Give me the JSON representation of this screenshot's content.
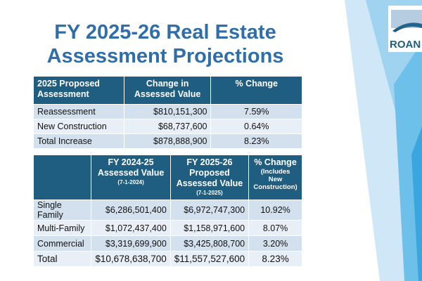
{
  "title": [
    "FY 2025-26 Real Estate",
    "Assessment Projections"
  ],
  "logo": "ROAN",
  "table1": {
    "header": [
      [
        "2025 Proposed",
        "Assessment"
      ],
      [
        "Change in",
        "Assessed Value"
      ],
      [
        "% Change"
      ]
    ],
    "rows": [
      [
        "Reassessment",
        "$810,151,300",
        "7.59%"
      ],
      [
        "New Construction",
        "$68,737,600",
        "0.64%"
      ],
      [
        "Total Increase",
        "$878,888,900",
        "8.23%"
      ]
    ]
  },
  "table2": {
    "header": [
      {
        "lines": []
      },
      {
        "lines": [
          "FY 2024-25",
          "Assessed Value"
        ],
        "note": "(7-1-2024)"
      },
      {
        "lines": [
          "FY 2025-26",
          "Proposed",
          "Assessed Value"
        ],
        "note": "(7-1-2025)"
      },
      {
        "lines": [
          "% Change",
          "(Includes",
          "New",
          "Construction)"
        ]
      }
    ],
    "rows": [
      [
        "Single Family",
        "$6,286,501,400",
        "$6,972,747,300",
        "10.92%"
      ],
      [
        "Multi-Family",
        "$1,072,437,400",
        "$1,158,971,600",
        "8.07%"
      ],
      [
        "Commercial",
        "$3,319,699,900",
        "$3,425,808,700",
        "3.20%"
      ],
      [
        "Total",
        "$10,678,638,700",
        "$11,557,527,600",
        "8.23%"
      ]
    ]
  }
}
